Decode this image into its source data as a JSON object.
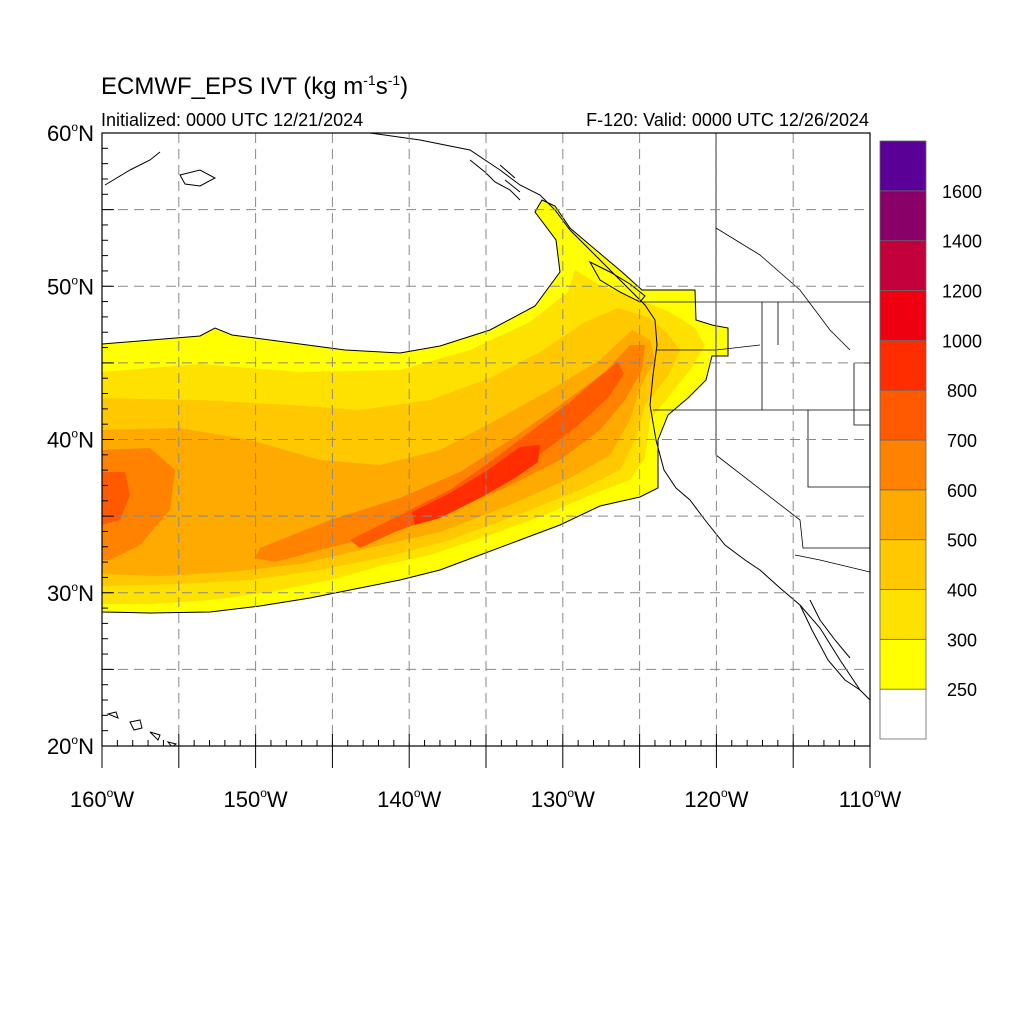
{
  "header": {
    "title_main": "ECMWF_EPS IVT (kg m",
    "title_sup1": "-1",
    "title_mid": "s",
    "title_sup2": "-1",
    "title_end": ")",
    "initialized": "Initialized: 0000 UTC 12/21/2024",
    "valid": "F-120: Valid: 0000 UTC 12/26/2024"
  },
  "map": {
    "lon_range": [
      -160,
      -110
    ],
    "lat_range": [
      20,
      60
    ],
    "lon_ticks": [
      {
        "value": -160,
        "num": "160",
        "hemi": "W"
      },
      {
        "value": -150,
        "num": "150",
        "hemi": "W"
      },
      {
        "value": -140,
        "num": "140",
        "hemi": "W"
      },
      {
        "value": -130,
        "num": "130",
        "hemi": "W"
      },
      {
        "value": -120,
        "num": "120",
        "hemi": "W"
      },
      {
        "value": -110,
        "num": "110",
        "hemi": "W"
      }
    ],
    "lat_ticks": [
      {
        "value": 60,
        "num": "60",
        "hemi": "N"
      },
      {
        "value": 50,
        "num": "50",
        "hemi": "N"
      },
      {
        "value": 40,
        "num": "40",
        "hemi": "N"
      },
      {
        "value": 30,
        "num": "30",
        "hemi": "N"
      },
      {
        "value": 20,
        "num": "20",
        "hemi": "N"
      }
    ],
    "gridlines": "dashed every 5 degrees"
  },
  "colorbar": {
    "levels": [
      250,
      300,
      400,
      500,
      600,
      700,
      800,
      1000,
      1200,
      1400,
      1600
    ],
    "labels": [
      "250",
      "300",
      "400",
      "500",
      "600",
      "700",
      "800",
      "1000",
      "1200",
      "1400",
      "1600"
    ],
    "colors": [
      "#ffffff",
      "#ffff00",
      "#ffe100",
      "#ffc800",
      "#ffaa00",
      "#ff8200",
      "#ff5a00",
      "#ff2d00",
      "#ee0010",
      "#c4003c",
      "#880068",
      "#5a0096"
    ]
  },
  "chart_data": {
    "type": "heatmap",
    "variable": "IVT",
    "units": "kg m-1 s-1",
    "plume_axis": {
      "note": "atmospheric river core from central Pacific to Pacific Northwest coast",
      "points": [
        {
          "lon": -159,
          "lat": 36.0,
          "ivt": 650
        },
        {
          "lon": -150,
          "lat": 34.5,
          "ivt": 550
        },
        {
          "lon": -140,
          "lat": 35.0,
          "ivt": 800
        },
        {
          "lon": -133,
          "lat": 38.0,
          "ivt": 820
        },
        {
          "lon": -127,
          "lat": 42.0,
          "ivt": 700
        },
        {
          "lon": -124,
          "lat": 46.5,
          "ivt": 600
        }
      ]
    }
  }
}
